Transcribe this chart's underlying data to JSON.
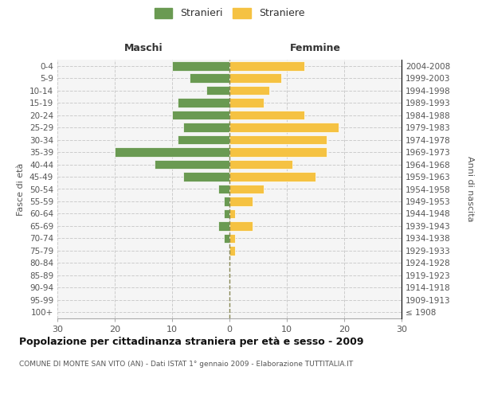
{
  "age_groups": [
    "100+",
    "95-99",
    "90-94",
    "85-89",
    "80-84",
    "75-79",
    "70-74",
    "65-69",
    "60-64",
    "55-59",
    "50-54",
    "45-49",
    "40-44",
    "35-39",
    "30-34",
    "25-29",
    "20-24",
    "15-19",
    "10-14",
    "5-9",
    "0-4"
  ],
  "birth_years": [
    "≤ 1908",
    "1909-1913",
    "1914-1918",
    "1919-1923",
    "1924-1928",
    "1929-1933",
    "1934-1938",
    "1939-1943",
    "1944-1948",
    "1949-1953",
    "1954-1958",
    "1959-1963",
    "1964-1968",
    "1969-1973",
    "1974-1978",
    "1979-1983",
    "1984-1988",
    "1989-1993",
    "1994-1998",
    "1999-2003",
    "2004-2008"
  ],
  "maschi": [
    0,
    0,
    0,
    0,
    0,
    0,
    1,
    2,
    1,
    1,
    2,
    8,
    13,
    20,
    9,
    8,
    10,
    9,
    4,
    7,
    10
  ],
  "femmine": [
    0,
    0,
    0,
    0,
    0,
    1,
    1,
    4,
    1,
    4,
    6,
    15,
    11,
    17,
    17,
    19,
    13,
    6,
    7,
    9,
    13
  ],
  "maschi_color": "#6a9a52",
  "femmine_color": "#f5c242",
  "background_color": "#ffffff",
  "grid_color": "#cccccc",
  "title": "Popolazione per cittadinanza straniera per età e sesso - 2009",
  "subtitle": "COMUNE DI MONTE SAN VITO (AN) - Dati ISTAT 1° gennaio 2009 - Elaborazione TUTTITALIA.IT",
  "xlabel_left": "Maschi",
  "xlabel_right": "Femmine",
  "ylabel_left": "Fasce di età",
  "ylabel_right": "Anni di nascita",
  "legend_stranieri": "Stranieri",
  "legend_straniere": "Straniere",
  "xlim": 30
}
